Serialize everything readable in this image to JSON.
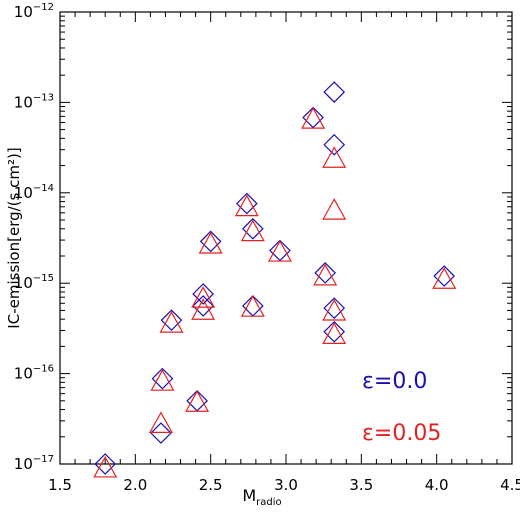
{
  "chart_data": {
    "type": "scatter",
    "title": "",
    "xlabel_main": "M",
    "xlabel_sub": "radio",
    "ylabel": "IC-emission[erg/(s cm²)]",
    "x_scale": "linear",
    "y_scale": "log",
    "xlim": [
      1.5,
      4.5
    ],
    "ylim": [
      1e-17,
      1e-12
    ],
    "x_ticks": [
      "1.5",
      "2.0",
      "2.5",
      "3.0",
      "3.5",
      "4.0",
      "4.5"
    ],
    "y_ticks": [
      {
        "base": "10",
        "exp": "−17"
      },
      {
        "base": "10",
        "exp": "−16"
      },
      {
        "base": "10",
        "exp": "−15"
      },
      {
        "base": "10",
        "exp": "−14"
      },
      {
        "base": "10",
        "exp": "−13"
      },
      {
        "base": "10",
        "exp": "−12"
      }
    ],
    "grid": false,
    "legend_position": "bottom-right",
    "series": [
      {
        "name": "ε=0.0",
        "marker": "diamond",
        "color": "#1a0fb4",
        "points": [
          [
            1.8,
            1e-17
          ],
          [
            2.17,
            2.2e-17
          ],
          [
            2.18,
            8.8e-17
          ],
          [
            2.24,
            3.9e-16
          ],
          [
            2.41,
            5e-17
          ],
          [
            2.45,
            7.6e-16
          ],
          [
            2.45,
            5.6e-16
          ],
          [
            2.5,
            2.9e-15
          ],
          [
            2.74,
            7.6e-15
          ],
          [
            2.78,
            4e-15
          ],
          [
            2.78,
            5.6e-16
          ],
          [
            2.96,
            2.3e-15
          ],
          [
            3.18,
            6.8e-14
          ],
          [
            3.26,
            1.3e-15
          ],
          [
            3.32,
            1.3e-13
          ],
          [
            3.32,
            3.4e-14
          ],
          [
            3.32,
            5.3e-16
          ],
          [
            3.32,
            2.9e-16
          ],
          [
            4.05,
            1.2e-15
          ]
        ]
      },
      {
        "name": "ε=0.05",
        "marker": "triangle",
        "color": "#e32222",
        "points": [
          [
            1.8,
            9e-18
          ],
          [
            2.17,
            2.8e-17
          ],
          [
            2.18,
            8.2e-17
          ],
          [
            2.24,
            3.6e-16
          ],
          [
            2.41,
            4.8e-17
          ],
          [
            2.45,
            6.8e-16
          ],
          [
            2.45,
            5e-16
          ],
          [
            2.5,
            2.7e-15
          ],
          [
            2.74,
            7e-15
          ],
          [
            2.78,
            3.7e-15
          ],
          [
            2.78,
            5.4e-16
          ],
          [
            2.96,
            2.2e-15
          ],
          [
            3.18,
            6.5e-14
          ],
          [
            3.26,
            1.2e-15
          ],
          [
            3.32,
            2.4e-14
          ],
          [
            3.32,
            6.4e-15
          ],
          [
            3.32,
            4.9e-16
          ],
          [
            3.32,
            2.7e-16
          ],
          [
            4.05,
            1.1e-15
          ]
        ]
      }
    ]
  }
}
